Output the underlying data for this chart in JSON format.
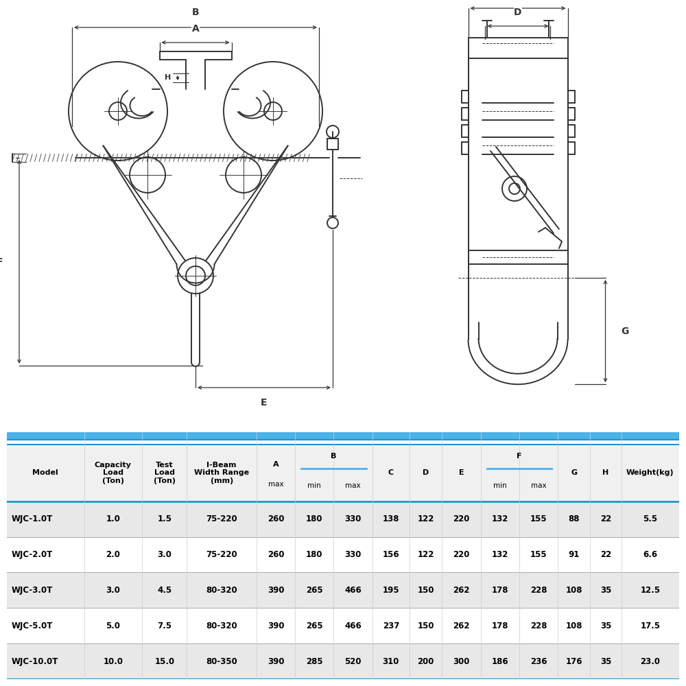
{
  "table_header_bg": "#4ab3e8",
  "table_row_bg_alt": "#e8e8e8",
  "table_row_bg_white": "#ffffff",
  "table_border_color": "#2196c8",
  "rows": [
    [
      "WJC-1.0T",
      "1.0",
      "1.5",
      "75-220",
      "260",
      "180",
      "330",
      "138",
      "122",
      "220",
      "132",
      "155",
      "88",
      "22",
      "5.5"
    ],
    [
      "WJC-2.0T",
      "2.0",
      "3.0",
      "75-220",
      "260",
      "180",
      "330",
      "156",
      "122",
      "220",
      "132",
      "155",
      "91",
      "22",
      "6.6"
    ],
    [
      "WJC-3.0T",
      "3.0",
      "4.5",
      "80-320",
      "390",
      "265",
      "466",
      "195",
      "150",
      "262",
      "178",
      "228",
      "108",
      "35",
      "12.5"
    ],
    [
      "WJC-5.0T",
      "5.0",
      "7.5",
      "80-320",
      "390",
      "265",
      "466",
      "237",
      "150",
      "262",
      "178",
      "228",
      "108",
      "35",
      "17.5"
    ],
    [
      "WJC-10.0T",
      "10.0",
      "15.0",
      "80-350",
      "390",
      "285",
      "520",
      "310",
      "200",
      "300",
      "186",
      "236",
      "176",
      "35",
      "23.0"
    ]
  ],
  "line_color": "#333333"
}
